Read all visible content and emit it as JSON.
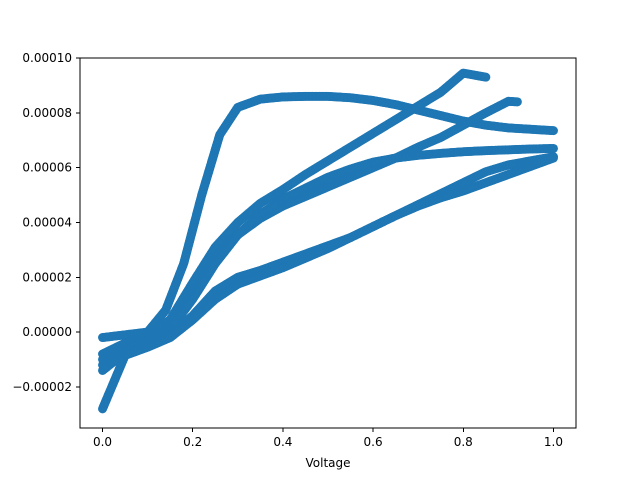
{
  "chart_data": {
    "type": "scatter",
    "title": "",
    "xlabel": "Voltage",
    "ylabel": "",
    "xlim": [
      -0.05,
      1.05
    ],
    "ylim": [
      -3.5e-05,
      0.0001
    ],
    "x_ticks": [
      0.0,
      0.2,
      0.4,
      0.6,
      0.8,
      1.0
    ],
    "x_tick_labels": [
      "0.0",
      "0.2",
      "0.4",
      "0.6",
      "0.8",
      "1.0"
    ],
    "y_ticks": [
      -2e-05,
      0.0,
      2e-05,
      4e-05,
      6e-05,
      8e-05,
      0.0001
    ],
    "y_tick_labels": [
      "−0.00002",
      "0.00000",
      "0.00002",
      "0.00004",
      "0.00006",
      "0.00008",
      "0.00010"
    ],
    "grid": false,
    "legend": "none",
    "marker_color": "#1f77b4",
    "series": [
      {
        "x": [
          0.0,
          0.05,
          0.1,
          0.14,
          0.18,
          0.22,
          0.26,
          0.3,
          0.35,
          0.4,
          0.45,
          0.5,
          0.55,
          0.6,
          0.65,
          0.7,
          0.75,
          0.8,
          0.85,
          0.9,
          0.95,
          1.0
        ],
        "y": [
          -2e-06,
          -1e-06,
          0.0,
          8e-06,
          2.5e-05,
          5e-05,
          7.2e-05,
          8.2e-05,
          8.5e-05,
          8.58e-05,
          8.6e-05,
          8.6e-05,
          8.55e-05,
          8.45e-05,
          8.3e-05,
          8.1e-05,
          7.9e-05,
          7.7e-05,
          7.55e-05,
          7.45e-05,
          7.4e-05,
          7.35e-05
        ]
      },
      {
        "x": [
          0.0,
          0.05,
          0.1,
          0.15,
          0.2,
          0.25,
          0.3,
          0.35,
          0.4,
          0.45,
          0.5,
          0.55,
          0.6,
          0.65,
          0.7,
          0.75,
          0.8,
          0.85
        ],
        "y": [
          -8e-06,
          -4e-06,
          -1.5e-06,
          4.5e-06,
          1.8e-05,
          3.1e-05,
          4e-05,
          4.7e-05,
          5.2e-05,
          5.75e-05,
          6.25e-05,
          6.75e-05,
          7.25e-05,
          7.75e-05,
          8.25e-05,
          8.75e-05,
          9.45e-05,
          9.3e-05
        ]
      },
      {
        "x": [
          0.0,
          0.05,
          0.1,
          0.15,
          0.2,
          0.25,
          0.3,
          0.35,
          0.4,
          0.45,
          0.5,
          0.55,
          0.6,
          0.65,
          0.7,
          0.75,
          0.8,
          0.85,
          0.9,
          0.92
        ],
        "y": [
          -1e-05,
          -5.5e-06,
          -3e-06,
          2.5e-06,
          1.4e-05,
          2.7e-05,
          3.55e-05,
          4.15e-05,
          4.6e-05,
          4.95e-05,
          5.3e-05,
          5.65e-05,
          6e-05,
          6.35e-05,
          6.75e-05,
          7.1e-05,
          7.55e-05,
          8e-05,
          8.42e-05,
          8.4e-05
        ]
      },
      {
        "x": [
          0.0,
          0.05,
          0.1,
          0.15,
          0.2,
          0.25,
          0.3,
          0.35,
          0.4,
          0.45,
          0.5,
          0.55,
          0.6,
          0.65,
          0.7,
          0.75,
          0.8,
          0.85,
          0.9,
          0.95,
          1.0
        ],
        "y": [
          -1.2e-05,
          -6.5e-06,
          -3.5e-06,
          1e-06,
          1.2e-05,
          2.5e-05,
          3.55e-05,
          4.3e-05,
          4.85e-05,
          5.25e-05,
          5.65e-05,
          5.95e-05,
          6.2e-05,
          6.35e-05,
          6.45e-05,
          6.52e-05,
          6.58e-05,
          6.62e-05,
          6.65e-05,
          6.68e-05,
          6.7e-05
        ]
      },
      {
        "x": [
          0.0,
          0.05,
          0.1,
          0.15,
          0.2,
          0.25,
          0.3,
          0.35,
          0.4,
          0.45,
          0.5,
          0.55,
          0.6,
          0.65,
          0.7,
          0.75,
          0.8,
          0.85,
          0.9,
          0.95,
          1.0
        ],
        "y": [
          -1.4e-05,
          -7.5e-06,
          -4.5e-06,
          -1e-06,
          6e-06,
          1.5e-05,
          2e-05,
          2.25e-05,
          2.55e-05,
          2.85e-05,
          3.15e-05,
          3.45e-05,
          3.85e-05,
          4.25e-05,
          4.65e-05,
          5.05e-05,
          5.45e-05,
          5.85e-05,
          6.1e-05,
          6.25e-05,
          6.4e-05
        ]
      },
      {
        "x": [
          0.0,
          0.05,
          0.1,
          0.15,
          0.2,
          0.25,
          0.3,
          0.35,
          0.4,
          0.45,
          0.5,
          0.55,
          0.6,
          0.65,
          0.7,
          0.75,
          0.8,
          0.85,
          0.9,
          0.95,
          1.0
        ],
        "y": [
          -2.8e-05,
          -8.5e-06,
          -5.5e-06,
          -2e-06,
          4.5e-06,
          1.2e-05,
          1.75e-05,
          2.05e-05,
          2.35e-05,
          2.7e-05,
          3.05e-05,
          3.45e-05,
          3.85e-05,
          4.25e-05,
          4.6e-05,
          4.9e-05,
          5.15e-05,
          5.45e-05,
          5.75e-05,
          6.05e-05,
          6.35e-05
        ]
      }
    ]
  }
}
